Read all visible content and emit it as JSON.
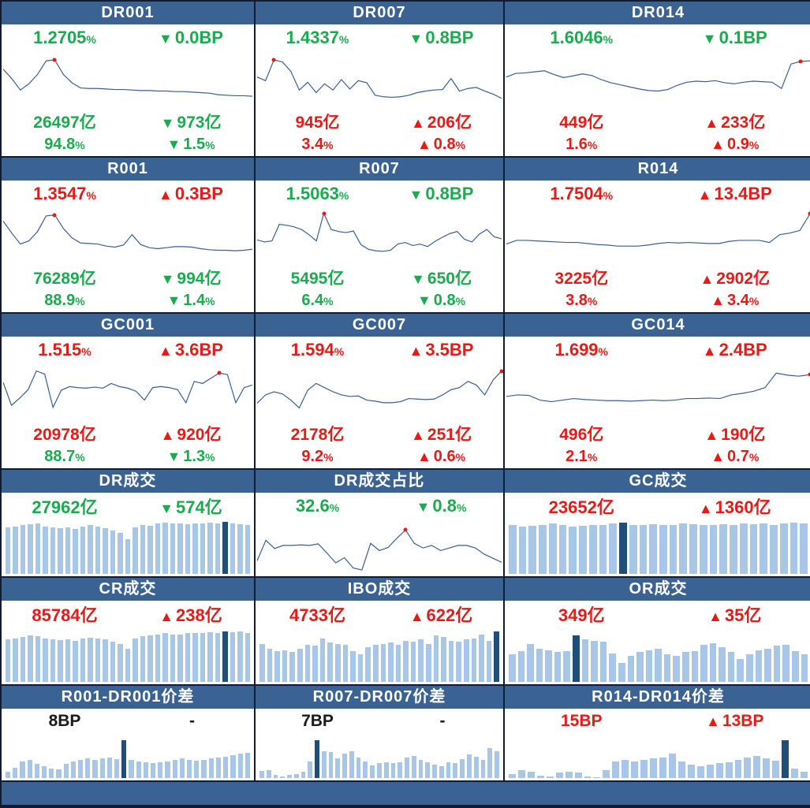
{
  "colors": {
    "header": "#3a6394",
    "grid": "#111c33",
    "green": "#1aab4f",
    "red": "#e61b17",
    "line": "#3a5f93",
    "bar": "#a8c7e6",
    "barDark": "#1f4e79"
  },
  "footer": {
    "label": ""
  },
  "chart_data": [
    {
      "group": "rate",
      "title": "DR001",
      "type": "line",
      "rate": {
        "value": "1.2705",
        "unit": "%",
        "arrow": "▼",
        "change": "0.0",
        "change_unit": "BP",
        "color": "green"
      },
      "volume": {
        "value": "26497",
        "unit": "亿",
        "arrow": "▼",
        "change": "973",
        "change_unit": "亿",
        "color": "green"
      },
      "share": {
        "value": "94.8",
        "unit": "%",
        "arrow": "▼",
        "change": "1.5",
        "change_unit": "%",
        "color": "green"
      },
      "chart": {
        "type": "line",
        "dot_index": 6,
        "values": [
          70,
          52,
          30,
          42,
          60,
          86,
          88,
          60,
          44,
          34,
          33,
          33,
          32,
          31,
          31,
          30,
          29,
          29,
          28,
          28,
          27,
          27,
          26,
          25,
          24,
          21,
          20,
          19,
          19,
          18
        ]
      }
    },
    {
      "group": "rate",
      "title": "DR007",
      "type": "line",
      "rate": {
        "value": "1.4337",
        "unit": "%",
        "arrow": "▼",
        "change": "0.8",
        "change_unit": "BP",
        "color": "green"
      },
      "volume": {
        "value": "945",
        "unit": "亿",
        "arrow": "▲",
        "change": "206",
        "change_unit": "亿",
        "color": "red"
      },
      "share": {
        "value": "3.4",
        "unit": "%",
        "arrow": "▲",
        "change": "0.8",
        "change_unit": "%",
        "color": "red"
      },
      "chart": {
        "type": "line",
        "dot_index": 2,
        "values": [
          55,
          48,
          88,
          84,
          66,
          30,
          45,
          25,
          42,
          30,
          50,
          32,
          48,
          44,
          20,
          17,
          16,
          17,
          20,
          25,
          28,
          30,
          31,
          52,
          28,
          33,
          35,
          28,
          22,
          14
        ]
      }
    },
    {
      "group": "rate",
      "title": "DR014",
      "type": "line",
      "rate": {
        "value": "1.6046",
        "unit": "%",
        "arrow": "▼",
        "change": "0.1",
        "change_unit": "BP",
        "color": "green"
      },
      "volume": {
        "value": "449",
        "unit": "亿",
        "arrow": "▲",
        "change": "233",
        "change_unit": "亿",
        "color": "red"
      },
      "share": {
        "value": "1.6",
        "unit": "%",
        "arrow": "▲",
        "change": "0.9",
        "change_unit": "%",
        "color": "red"
      },
      "chart": {
        "type": "line",
        "dot_index": 31,
        "values": [
          55,
          62,
          63,
          65,
          67,
          60,
          54,
          57,
          61,
          58,
          50,
          44,
          40,
          36,
          32,
          29,
          28,
          31,
          39,
          45,
          47,
          46,
          48,
          44,
          42,
          45,
          47,
          46,
          45,
          33,
          80,
          85,
          86
        ]
      }
    },
    {
      "group": "rate",
      "title": "R001",
      "type": "line",
      "rate": {
        "value": "1.3547",
        "unit": "%",
        "arrow": "▲",
        "change": "0.3",
        "change_unit": "BP",
        "color": "red"
      },
      "volume": {
        "value": "76289",
        "unit": "亿",
        "arrow": "▼",
        "change": "994",
        "change_unit": "亿",
        "color": "green"
      },
      "share": {
        "value": "88.9",
        "unit": "%",
        "arrow": "▼",
        "change": "1.4",
        "change_unit": "%",
        "color": "green"
      },
      "chart": {
        "type": "line",
        "dot_index": 6,
        "values": [
          78,
          55,
          34,
          40,
          58,
          88,
          90,
          64,
          46,
          36,
          35,
          34,
          30,
          28,
          32,
          52,
          33,
          27,
          25,
          27,
          29,
          29,
          28,
          25,
          23,
          22,
          22,
          21,
          22,
          24
        ]
      }
    },
    {
      "group": "rate",
      "title": "R007",
      "type": "line",
      "rate": {
        "value": "1.5063",
        "unit": "%",
        "arrow": "▼",
        "change": "0.8",
        "change_unit": "BP",
        "color": "green"
      },
      "volume": {
        "value": "5495",
        "unit": "亿",
        "arrow": "▼",
        "change": "650",
        "change_unit": "亿",
        "color": "green"
      },
      "share": {
        "value": "6.4",
        "unit": "%",
        "arrow": "▼",
        "change": "0.8",
        "change_unit": "%",
        "color": "green"
      },
      "chart": {
        "type": "line",
        "dot_index": 9,
        "values": [
          42,
          38,
          40,
          72,
          70,
          67,
          62,
          52,
          40,
          93,
          62,
          58,
          56,
          59,
          33,
          24,
          21,
          20,
          22,
          34,
          37,
          31,
          34,
          29,
          39,
          47,
          54,
          58,
          43,
          38,
          53,
          62,
          48,
          44
        ]
      }
    },
    {
      "group": "rate",
      "title": "R014",
      "type": "line",
      "rate": {
        "value": "1.7504",
        "unit": "%",
        "arrow": "▲",
        "change": "13.4",
        "change_unit": "BP",
        "color": "red"
      },
      "volume": {
        "value": "3225",
        "unit": "亿",
        "arrow": "▲",
        "change": "2902",
        "change_unit": "亿",
        "color": "red"
      },
      "share": {
        "value": "3.8",
        "unit": "%",
        "arrow": "▲",
        "change": "3.4",
        "change_unit": "%",
        "color": "red"
      },
      "chart": {
        "type": "line",
        "dot_index": 30,
        "values": [
          34,
          41,
          41,
          40,
          39,
          38,
          37,
          37,
          35,
          33,
          32,
          30,
          30,
          30,
          32,
          35,
          37,
          36,
          37,
          36,
          35,
          35,
          39,
          41,
          41,
          41,
          37,
          52,
          55,
          60,
          92
        ]
      }
    },
    {
      "group": "rate",
      "title": "GC001",
      "type": "line",
      "rate": {
        "value": "1.515",
        "unit": "%",
        "arrow": "▲",
        "change": "3.6",
        "change_unit": "BP",
        "color": "red"
      },
      "volume": {
        "value": "20978",
        "unit": "亿",
        "arrow": "▲",
        "change": "920",
        "change_unit": "亿",
        "color": "red"
      },
      "share": {
        "value": "88.7",
        "unit": "%",
        "arrow": "▼",
        "change": "1.3",
        "change_unit": "%",
        "color": "green"
      },
      "chart": {
        "type": "line",
        "dot_index": 26,
        "values": [
          68,
          24,
          38,
          54,
          90,
          84,
          20,
          53,
          60,
          58,
          57,
          59,
          57,
          66,
          60,
          57,
          51,
          34,
          58,
          60,
          58,
          54,
          29,
          70,
          66,
          76,
          86,
          83,
          29,
          58,
          63
        ]
      }
    },
    {
      "group": "rate",
      "title": "GC007",
      "type": "line",
      "rate": {
        "value": "1.594",
        "unit": "%",
        "arrow": "▲",
        "change": "3.5",
        "change_unit": "BP",
        "color": "red"
      },
      "volume": {
        "value": "2178",
        "unit": "亿",
        "arrow": "▲",
        "change": "251",
        "change_unit": "亿",
        "color": "red"
      },
      "share": {
        "value": "9.2",
        "unit": "%",
        "arrow": "▲",
        "change": "0.6",
        "change_unit": "%",
        "color": "red"
      },
      "chart": {
        "type": "line",
        "dot_index": 29,
        "values": [
          28,
          44,
          50,
          46,
          34,
          19,
          53,
          66,
          58,
          50,
          44,
          41,
          42,
          34,
          32,
          29,
          29,
          31,
          37,
          36,
          35,
          36,
          44,
          54,
          58,
          70,
          63,
          44,
          73,
          90
        ]
      }
    },
    {
      "group": "rate",
      "title": "GC014",
      "type": "line",
      "rate": {
        "value": "1.699",
        "unit": "%",
        "arrow": "▲",
        "change": "2.4",
        "change_unit": "BP",
        "color": "red"
      },
      "volume": {
        "value": "496",
        "unit": "亿",
        "arrow": "▲",
        "change": "190",
        "change_unit": "亿",
        "color": "red"
      },
      "share": {
        "value": "2.1",
        "unit": "%",
        "arrow": "▲",
        "change": "0.7",
        "change_unit": "%",
        "color": "red"
      },
      "chart": {
        "type": "line",
        "dot_index": 27,
        "values": [
          41,
          44,
          43,
          34,
          31,
          34,
          37,
          35,
          34,
          33,
          33,
          32,
          33,
          34,
          33,
          34,
          37,
          37,
          38,
          37,
          44,
          47,
          51,
          58,
          86,
          82,
          80,
          83
        ]
      }
    },
    {
      "group": "volume",
      "title": "DR成交",
      "type": "bar",
      "stat": {
        "value": "27962",
        "unit": "亿",
        "arrow": "▼",
        "change": "574",
        "change_unit": "亿",
        "color": "green"
      },
      "chart": {
        "type": "bar",
        "highlight_index": 29,
        "values": [
          88,
          90,
          92,
          94,
          95,
          90,
          88,
          87,
          88,
          85,
          90,
          92,
          90,
          86,
          82,
          78,
          66,
          88,
          93,
          91,
          95,
          97,
          96,
          95,
          94,
          95,
          96,
          97,
          96,
          98,
          96,
          94,
          92
        ]
      }
    },
    {
      "group": "volume",
      "title": "DR成交占比",
      "type": "line",
      "stat": {
        "value": "32.6",
        "unit": "%",
        "arrow": "▼",
        "change": "0.8",
        "change_unit": "%",
        "color": "green"
      },
      "chart": {
        "type": "line",
        "dot_index": 17,
        "values": [
          24,
          64,
          48,
          54,
          54,
          55,
          54,
          57,
          39,
          20,
          30,
          10,
          6,
          58,
          44,
          50,
          68,
          84,
          58,
          49,
          54,
          44,
          49,
          54,
          54,
          49,
          37,
          29,
          21
        ]
      }
    },
    {
      "group": "volume",
      "title": "GC成交",
      "type": "bar",
      "stat": {
        "value": "23652",
        "unit": "亿",
        "arrow": "▲",
        "change": "1360",
        "change_unit": "亿",
        "color": "red"
      },
      "chart": {
        "type": "bar",
        "highlight_index": 11,
        "values": [
          92,
          90,
          91,
          93,
          95,
          92,
          90,
          91,
          93,
          92,
          95,
          97,
          93,
          92,
          94,
          93,
          92,
          95,
          94,
          93,
          92,
          94,
          93,
          95,
          94,
          96,
          93,
          95,
          97,
          95
        ]
      }
    },
    {
      "group": "volume",
      "title": "CR成交",
      "type": "bar",
      "stat": {
        "value": "85784",
        "unit": "亿",
        "arrow": "▲",
        "change": "238",
        "change_unit": "亿",
        "color": "red"
      },
      "chart": {
        "type": "bar",
        "highlight_index": 29,
        "values": [
          80,
          82,
          85,
          88,
          86,
          82,
          80,
          79,
          80,
          78,
          82,
          84,
          82,
          80,
          76,
          72,
          62,
          82,
          86,
          88,
          90,
          92,
          90,
          89,
          92,
          93,
          92,
          94,
          93,
          96,
          94,
          95,
          93
        ]
      }
    },
    {
      "group": "volume",
      "title": "IBO成交",
      "type": "bar",
      "stat": {
        "value": "4733",
        "unit": "亿",
        "arrow": "▲",
        "change": "622",
        "change_unit": "亿",
        "color": "red"
      },
      "chart": {
        "type": "bar",
        "highlight_index": 31,
        "values": [
          72,
          62,
          58,
          60,
          56,
          62,
          70,
          68,
          82,
          75,
          72,
          70,
          58,
          52,
          66,
          70,
          72,
          75,
          70,
          78,
          76,
          80,
          72,
          88,
          85,
          78,
          76,
          80,
          82,
          90,
          78,
          95
        ]
      }
    },
    {
      "group": "volume",
      "title": "OR成交",
      "type": "bar",
      "stat": {
        "value": "349",
        "unit": "亿",
        "arrow": "▲",
        "change": "35",
        "change_unit": "亿",
        "color": "red"
      },
      "chart": {
        "type": "bar",
        "highlight_index": 7,
        "values": [
          52,
          58,
          72,
          62,
          60,
          56,
          58,
          88,
          80,
          78,
          76,
          54,
          36,
          50,
          56,
          60,
          63,
          53,
          50,
          56,
          58,
          70,
          73,
          66,
          56,
          43,
          53,
          60,
          63,
          68,
          70,
          58,
          53
        ]
      }
    },
    {
      "group": "spread",
      "title": "R001-DR001价差",
      "type": "bar",
      "stat": {
        "value": "8",
        "unit": "BP",
        "arrow": "",
        "change": "-",
        "change_unit": "",
        "color": "black"
      },
      "chart": {
        "type": "bar",
        "highlight_index": 16,
        "values": [
          14,
          24,
          38,
          42,
          32,
          28,
          22,
          20,
          33,
          38,
          42,
          45,
          42,
          45,
          47,
          44,
          88,
          41,
          38,
          36,
          35,
          36,
          39,
          42,
          45,
          42,
          40,
          42,
          45,
          47,
          50,
          53,
          56,
          58
        ]
      }
    },
    {
      "group": "spread",
      "title": "R007-DR007价差",
      "type": "bar",
      "stat": {
        "value": "7",
        "unit": "BP",
        "arrow": "",
        "change": "-",
        "change_unit": "",
        "color": "black"
      },
      "chart": {
        "type": "bar",
        "highlight_index": 8,
        "values": [
          16,
          18,
          7,
          4,
          7,
          9,
          14,
          38,
          88,
          62,
          60,
          45,
          57,
          61,
          47,
          39,
          29,
          34,
          37,
          34,
          37,
          47,
          51,
          41,
          37,
          31,
          27,
          37,
          34,
          44,
          54,
          49,
          41,
          70,
          62
        ]
      }
    },
    {
      "group": "spread",
      "title": "R014-DR014价差",
      "type": "bar",
      "stat": {
        "value": "15",
        "unit": "BP",
        "arrow": "▲",
        "change": "13",
        "change_unit": "BP",
        "color": "red"
      },
      "chart": {
        "type": "bar",
        "highlight_index": 29,
        "values": [
          9,
          19,
          15,
          5,
          3,
          12,
          14,
          12,
          3,
          2,
          18,
          38,
          42,
          38,
          41,
          45,
          48,
          56,
          39,
          31,
          28,
          31,
          34,
          37,
          41,
          47,
          51,
          45,
          40,
          88,
          22,
          15
        ]
      }
    }
  ]
}
